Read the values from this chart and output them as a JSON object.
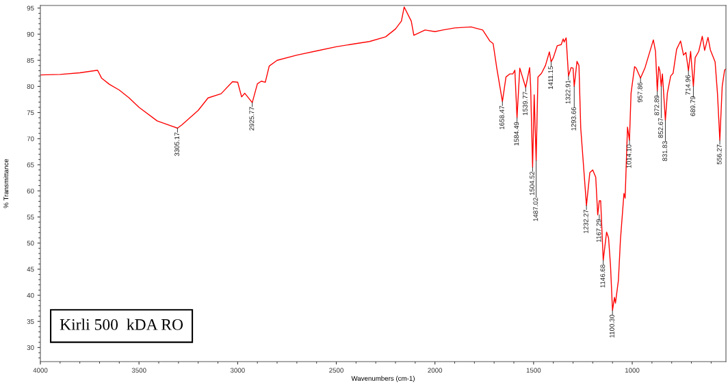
{
  "chart_data": {
    "type": "line",
    "xlabel": "Wavenumbers (cm-1)",
    "ylabel": "% Transmittance",
    "xlim": [
      4000,
      525
    ],
    "ylim": [
      27.3,
      95.5
    ],
    "xticks": [
      4000,
      3500,
      3000,
      2500,
      2000,
      1500,
      1000
    ],
    "yticks": [
      30,
      35,
      40,
      45,
      50,
      55,
      60,
      65,
      70,
      75,
      80,
      85,
      90,
      95
    ],
    "grid": false,
    "marker": "none",
    "line_style": "solid",
    "series": [
      {
        "color": "#ff0000",
        "x": [
          4000,
          3900,
          3800,
          3710,
          3690,
          3650,
          3600,
          3550,
          3500,
          3408,
          3305,
          3281,
          3200,
          3150,
          3084,
          3026,
          3000,
          2980,
          2964,
          2926,
          2900,
          2880,
          2860,
          2840,
          2800,
          2700,
          2600,
          2500,
          2400,
          2332,
          2250,
          2200,
          2170,
          2156,
          2120,
          2107,
          2050,
          2000,
          1960,
          1900,
          1817,
          1758,
          1722,
          1705,
          1687,
          1658,
          1640,
          1620,
          1605,
          1595,
          1584,
          1570,
          1540,
          1520,
          1515,
          1505,
          1497,
          1487,
          1478,
          1460,
          1440,
          1420,
          1411,
          1400,
          1380,
          1360,
          1350,
          1345,
          1335,
          1323,
          1310,
          1300,
          1294,
          1280,
          1270,
          1261,
          1232,
          1215,
          1200,
          1185,
          1175,
          1167,
          1160,
          1147,
          1130,
          1120,
          1110,
          1100,
          1090,
          1085,
          1070,
          1060,
          1042,
          1036,
          1024,
          1014,
          1006,
          988,
          980,
          958,
          935,
          893,
          882,
          873,
          866,
          860,
          853,
          847,
          832,
          822,
          805,
          793,
          775,
          755,
          740,
          728,
          715,
          704,
          690,
          681,
          663,
          645,
          633,
          616,
          604,
          580,
          568,
          556,
          544,
          532,
          527
        ],
        "values": [
          82.2,
          82.3,
          82.6,
          83.1,
          81.6,
          80.4,
          79.3,
          77.8,
          76.0,
          73.4,
          72.0,
          72.7,
          75.4,
          77.8,
          78.6,
          80.9,
          80.8,
          78.0,
          78.7,
          76.9,
          80.5,
          81.0,
          80.8,
          83.9,
          85.0,
          86.0,
          86.8,
          87.6,
          88.2,
          88.6,
          89.5,
          91.0,
          92.5,
          95.2,
          92.5,
          89.8,
          90.8,
          90.5,
          90.8,
          91.2,
          91.4,
          90.8,
          88.7,
          88.2,
          83.6,
          77.1,
          81.8,
          82.4,
          82.4,
          83.1,
          74.0,
          83.5,
          79.8,
          83.6,
          80.0,
          64.5,
          78.4,
          65.8,
          81.8,
          82.5,
          84.0,
          86.6,
          84.7,
          85.5,
          87.8,
          88.0,
          89.1,
          88.5,
          89.3,
          82.0,
          83.6,
          83.5,
          80.0,
          84.8,
          84.0,
          72.0,
          57.2,
          63.5,
          64.0,
          62.6,
          55.4,
          58.1,
          58.1,
          46.7,
          52.1,
          51.0,
          45.6,
          37.1,
          39.6,
          38.5,
          42.9,
          50.5,
          59.5,
          58.6,
          72.2,
          69.7,
          78.7,
          83.8,
          83.5,
          81.6,
          83.6,
          88.9,
          86.7,
          79.1,
          83.8,
          83.0,
          80.0,
          82.4,
          73.5,
          78.7,
          82.0,
          82.5,
          87.1,
          88.7,
          86.0,
          86.5,
          83.0,
          86.7,
          80.0,
          85.5,
          86.7,
          89.6,
          86.9,
          89.4,
          87.0,
          84.7,
          78.7,
          69.7,
          80.0,
          83.1,
          83.3
        ]
      }
    ],
    "annotations": [
      {
        "text": "3305.17",
        "x": 3305,
        "y": 72.0
      },
      {
        "text": "2925.77",
        "x": 2926,
        "y": 76.9
      },
      {
        "text": "1658.47",
        "x": 1658,
        "y": 77.1
      },
      {
        "text": "1584.49",
        "x": 1584,
        "y": 74.0
      },
      {
        "text": "1539.77",
        "x": 1540,
        "y": 79.8
      },
      {
        "text": "1504.52",
        "x": 1505,
        "y": 64.5
      },
      {
        "text": "1487.02",
        "x": 1487,
        "y": 65.8
      },
      {
        "text": "1411.15",
        "x": 1411,
        "y": 84.7
      },
      {
        "text": "1322.91",
        "x": 1323,
        "y": 82.0
      },
      {
        "text": "1293.66",
        "x": 1294,
        "y": 80.0
      },
      {
        "text": "1232.27",
        "x": 1232,
        "y": 57.2
      },
      {
        "text": "1167.29",
        "x": 1167,
        "y": 55.4
      },
      {
        "text": "1146.68",
        "x": 1147,
        "y": 46.7
      },
      {
        "text": "1100.30",
        "x": 1100,
        "y": 37.1
      },
      {
        "text": "1014.10",
        "x": 1014,
        "y": 69.7
      },
      {
        "text": "957.86",
        "x": 958,
        "y": 81.6
      },
      {
        "text": "872.89",
        "x": 873,
        "y": 79.1
      },
      {
        "text": "852.67",
        "x": 853,
        "y": 80.0
      },
      {
        "text": "831.83",
        "x": 832,
        "y": 73.5
      },
      {
        "text": "714.96",
        "x": 715,
        "y": 83.0
      },
      {
        "text": "689.79",
        "x": 690,
        "y": 80.0
      },
      {
        "text": "556.27",
        "x": 556,
        "y": 69.7
      },
      "Kirli 500  kDA RO"
    ]
  }
}
